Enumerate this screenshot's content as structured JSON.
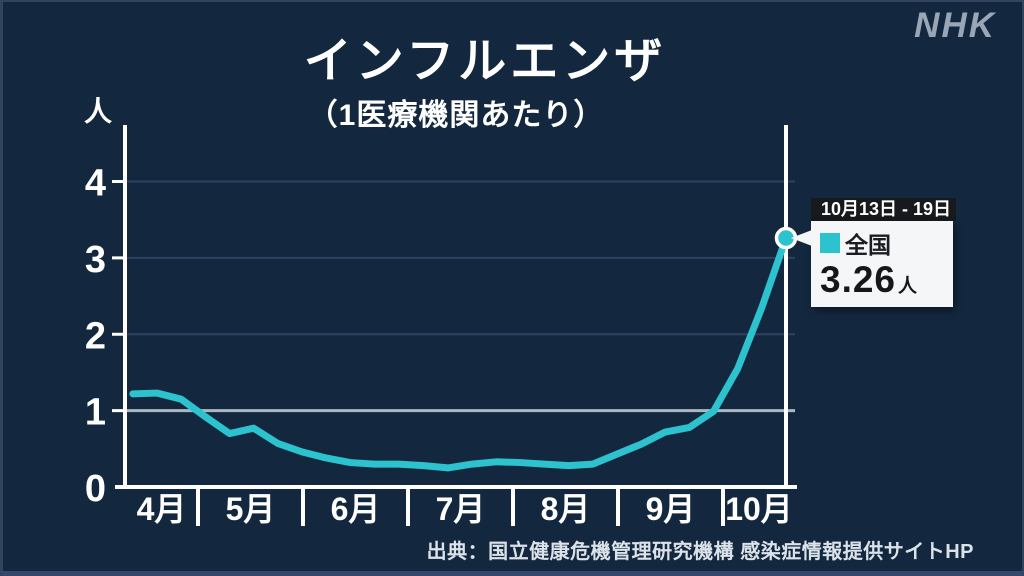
{
  "brand": {
    "logo_text": "NHK",
    "color": "#9aa6b6"
  },
  "header": {
    "title": "インフルエンザ",
    "subtitle": "（1医療機関あたり）"
  },
  "callout": {
    "period": "10月13日 - 19日",
    "series_label": "全国",
    "value": "3.26",
    "unit": "人"
  },
  "source_caption": "出典：国立健康危機管理研究機構 感染症情報提供サイトHP",
  "chart_data": {
    "type": "line",
    "title": "インフルエンザ（1医療機関あたり）",
    "ylabel": "人",
    "xlabel": "",
    "y_ticks": [
      0,
      1,
      2,
      3,
      4
    ],
    "ylim": [
      0,
      4.74
    ],
    "x_labels": [
      "4月",
      "5月",
      "6月",
      "7月",
      "8月",
      "9月",
      "10月"
    ],
    "x_axis_unit": "month (4 = April, 10 = October)",
    "grid": {
      "horizontal": true,
      "emphasized_tick": 1
    },
    "grid_color": "#2e4161",
    "grid_strong_color": "#aab8c6",
    "axis_color": "#ffffff",
    "series": [
      {
        "name": "全国",
        "color": "#2cc3ce",
        "x_month": [
          4.38,
          4.61,
          4.84,
          5.07,
          5.3,
          5.53,
          5.76,
          5.99,
          6.22,
          6.45,
          6.68,
          6.91,
          7.15,
          7.38,
          7.61,
          7.84,
          8.07,
          8.3,
          8.53,
          8.76,
          8.99,
          9.22,
          9.45,
          9.68,
          9.91,
          10.14,
          10.37,
          10.6
        ],
        "values": [
          1.22,
          1.23,
          1.15,
          0.92,
          0.7,
          0.77,
          0.57,
          0.46,
          0.38,
          0.32,
          0.3,
          0.3,
          0.28,
          0.25,
          0.3,
          0.33,
          0.32,
          0.3,
          0.28,
          0.3,
          0.43,
          0.56,
          0.72,
          0.78,
          0.99,
          1.55,
          2.35,
          3.26
        ]
      }
    ],
    "highlight": {
      "period": "10月13日 - 19日",
      "series": "全国",
      "x_month": 10.6,
      "value": 3.26,
      "marker_color": "#2cc3ce"
    }
  }
}
